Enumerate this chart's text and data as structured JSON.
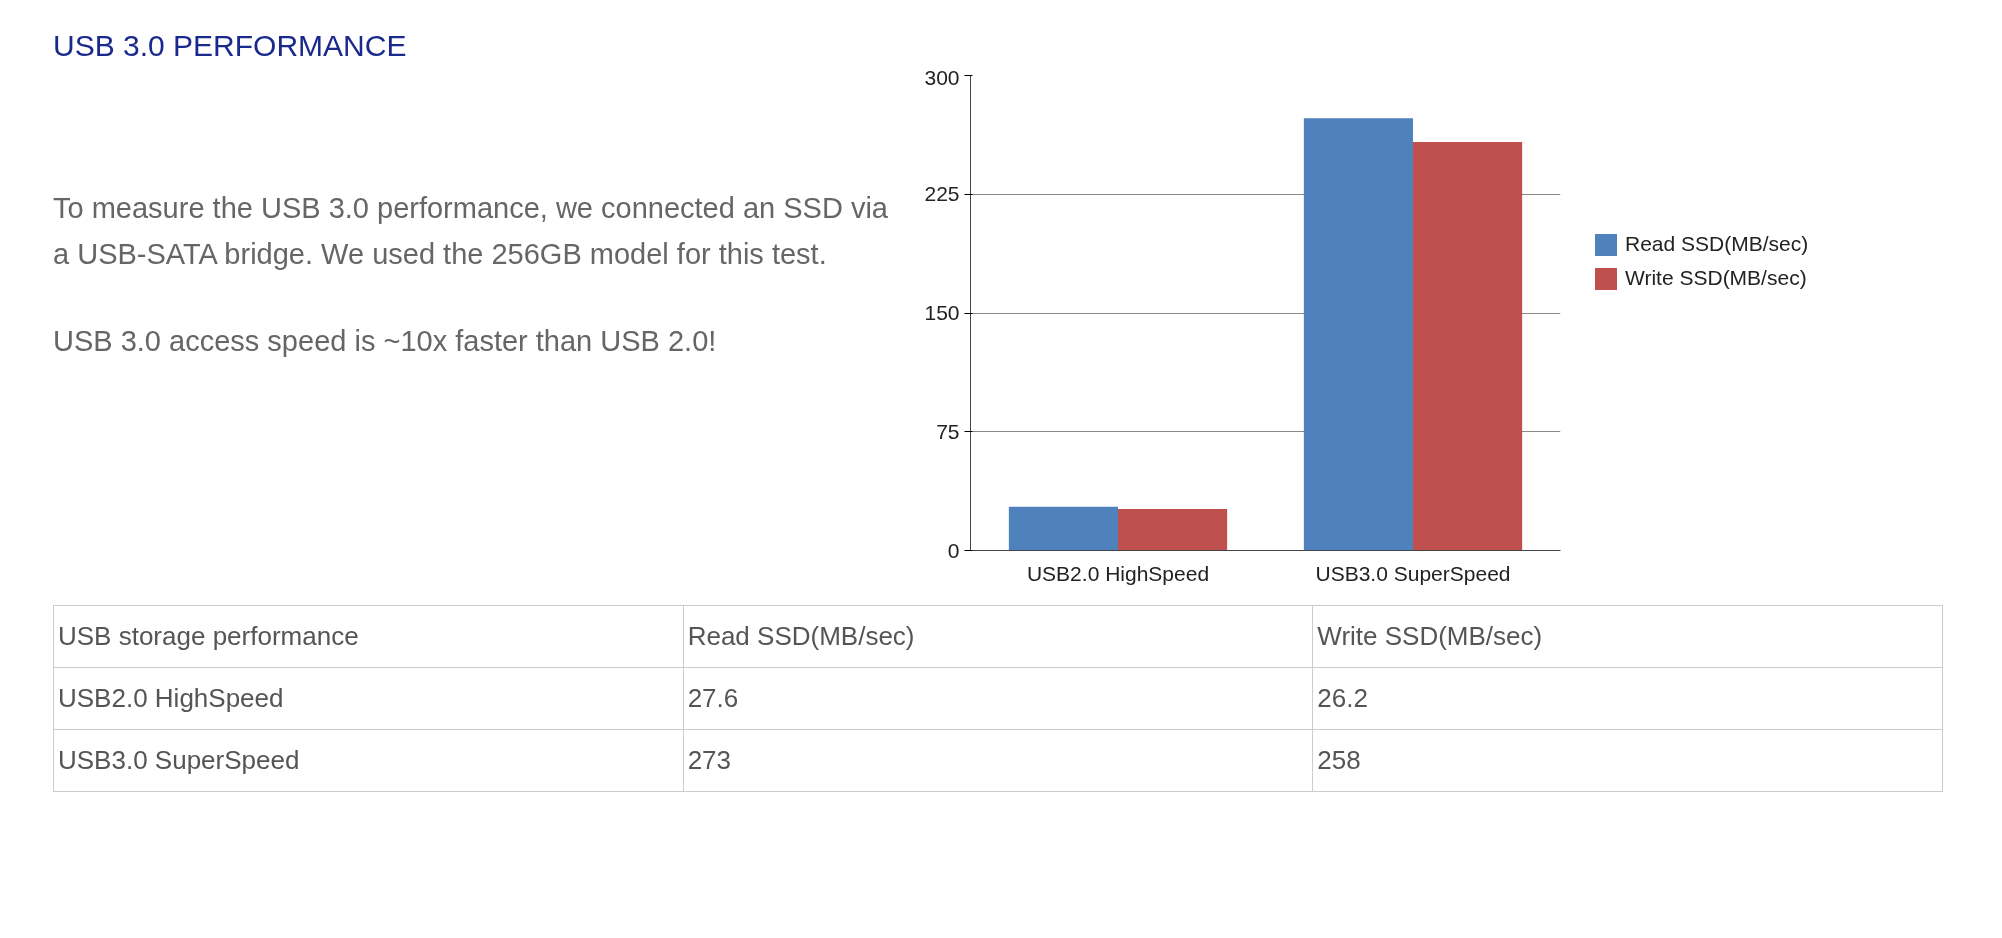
{
  "chart_data": {
    "type": "bar",
    "title": "USB 3.0 PERFORMANCE",
    "categories": [
      "USB2.0 HighSpeed",
      "USB3.0 SuperSpeed"
    ],
    "series": [
      {
        "name": "Read SSD(MB/sec)",
        "color": "#4f81bd",
        "values": [
          27.6,
          273
        ]
      },
      {
        "name": "Write SSD(MB/sec)",
        "color": "#c0504d",
        "values": [
          26.2,
          258
        ]
      }
    ],
    "ylim": [
      0,
      300
    ],
    "yticks": [
      0,
      75,
      150,
      225,
      300
    ],
    "grid": "y",
    "legend": "right",
    "annotations": [
      "To measure the USB 3.0 performance, we connected an SSD via a USB-SATA bridge. We used the 256GB model for this test.",
      "USB 3.0 access speed is ~10x faster than USB 2.0!",
      "USB storage performance",
      "27.6",
      "26.2",
      "273",
      "258"
    ]
  }
}
